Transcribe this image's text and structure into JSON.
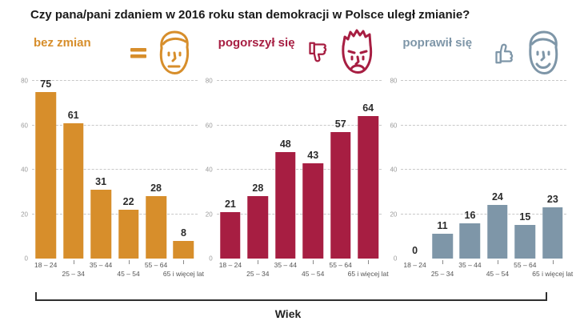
{
  "title": "Czy pana/pani zdaniem w 2016 roku stan demokracji w Polsce uległ zmianie?",
  "chart_data": {
    "type": "bar",
    "categories": [
      "18 – 24",
      "25 – 34",
      "35 – 44",
      "45 – 54",
      "55 – 64",
      "65 i więcej lat"
    ],
    "series": [
      {
        "name": "bez zmian",
        "color": "#D78E2B",
        "icon": "equals-neutral-face",
        "values": [
          75,
          61,
          31,
          22,
          28,
          8
        ]
      },
      {
        "name": "pogorszył się",
        "color": "#A71E42",
        "icon": "thumbs-down-sad-face",
        "values": [
          21,
          28,
          48,
          43,
          57,
          64
        ]
      },
      {
        "name": "poprawił się",
        "color": "#7E96A8",
        "icon": "thumbs-up-happy-face",
        "values": [
          0,
          11,
          16,
          24,
          15,
          23
        ]
      }
    ],
    "yticks": [
      0,
      20,
      40,
      60,
      80
    ],
    "ylim": [
      0,
      80
    ],
    "xlabel": "Wiek",
    "grid": "dashed-horizontal",
    "legend_position": "panel-headers"
  }
}
